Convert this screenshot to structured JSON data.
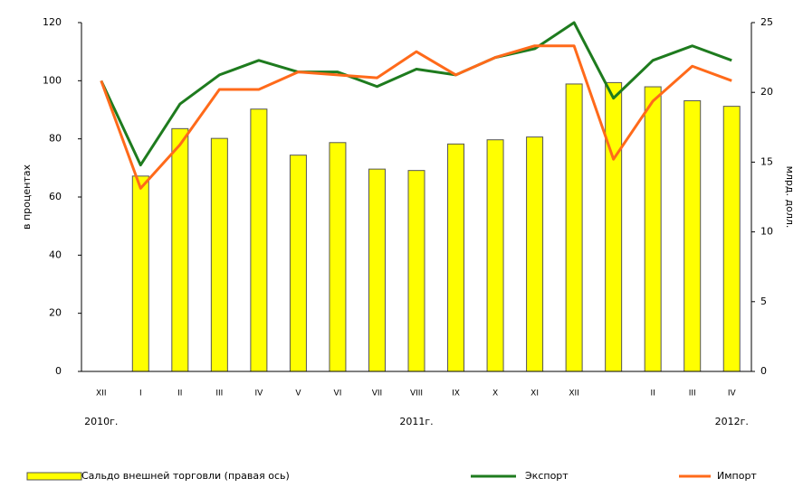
{
  "chart_data": {
    "type": "bar-line",
    "categories": [
      "XII",
      "I",
      "II",
      "III",
      "IV",
      "V",
      "VI",
      "VII",
      "VIII",
      "IX",
      "X",
      "XI",
      "XII",
      null,
      "II",
      "III",
      "IV"
    ],
    "annotations": [
      "2010г.",
      "2011г.",
      "2012г."
    ],
    "y_label": "в процентах",
    "y2_label": "млрд. долл.",
    "ylim": [
      0,
      120
    ],
    "yticks": [
      0,
      20,
      40,
      60,
      80,
      100,
      120
    ],
    "y2lim": [
      0,
      25
    ],
    "y2ticks": [
      0,
      5,
      10,
      15,
      20,
      25
    ],
    "series": [
      {
        "name": "Сальдо внешней торговли (правая ось)",
        "type": "bar",
        "axis": "y2",
        "color": "#ffff00",
        "values": [
          null,
          14.0,
          17.4,
          16.7,
          18.8,
          15.5,
          16.4,
          14.5,
          14.4,
          16.3,
          16.6,
          16.8,
          20.6,
          20.7,
          20.4,
          19.4,
          19.0
        ]
      },
      {
        "name": "Экспорт",
        "type": "line",
        "color": "#1e7b1e",
        "values": [
          100,
          71,
          92,
          102,
          107,
          103,
          103,
          98,
          104,
          102,
          108,
          111,
          120,
          94,
          107,
          112,
          107
        ]
      },
      {
        "name": "Импорт",
        "type": "line",
        "color": "#ff6a1a",
        "values": [
          100,
          63,
          78,
          97,
          97,
          103,
          102,
          101,
          110,
          102,
          108,
          112,
          112,
          73,
          93,
          105,
          100
        ]
      }
    ]
  }
}
